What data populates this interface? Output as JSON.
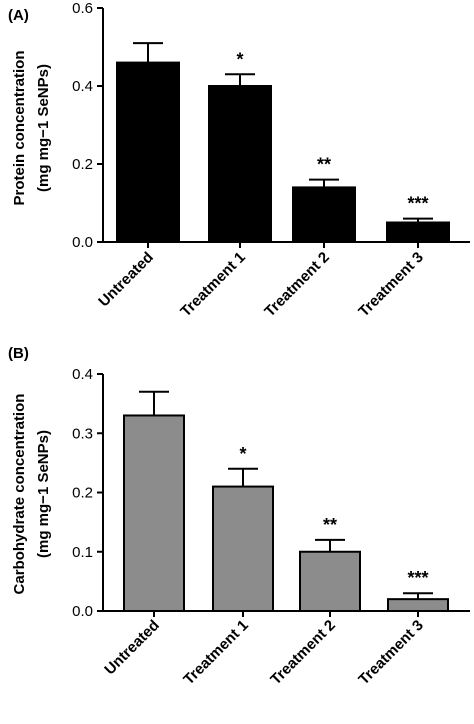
{
  "chart_data": [
    {
      "type": "bar",
      "panel_label": "(A)",
      "categories": [
        "Untreated",
        "Treatment 1",
        "Treatment 2",
        "Treatment 3"
      ],
      "values": [
        0.46,
        0.4,
        0.14,
        0.05
      ],
      "errors": [
        0.05,
        0.03,
        0.02,
        0.01
      ],
      "significance": [
        "",
        "*",
        "**",
        "***"
      ],
      "ylabel_line1": "Protein concentration",
      "ylabel_line2": "(mg mg−1 SeNPs)",
      "ylim": [
        0,
        0.6
      ],
      "yticks": [
        0.0,
        0.2,
        0.4,
        0.6
      ],
      "ytick_labels": [
        "0.0",
        "0.2",
        "0.4",
        "0.6"
      ],
      "bar_color": "#000000",
      "grid": false
    },
    {
      "type": "bar",
      "panel_label": "(B)",
      "categories": [
        "Untreated",
        "Treatment 1",
        "Treatment 2",
        "Treatment 3"
      ],
      "values": [
        0.33,
        0.21,
        0.1,
        0.02
      ],
      "errors": [
        0.04,
        0.03,
        0.02,
        0.01
      ],
      "significance": [
        "",
        "*",
        "**",
        "***"
      ],
      "ylabel_line1": "Carbohydrate concentration",
      "ylabel_line2": "(mg mg−1 SeNPs)",
      "ylim": [
        0,
        0.4
      ],
      "yticks": [
        0.0,
        0.1,
        0.2,
        0.3,
        0.4
      ],
      "ytick_labels": [
        "0.0",
        "0.1",
        "0.2",
        "0.3",
        "0.4"
      ],
      "bar_color": "#8c8c8c",
      "grid": false
    }
  ]
}
